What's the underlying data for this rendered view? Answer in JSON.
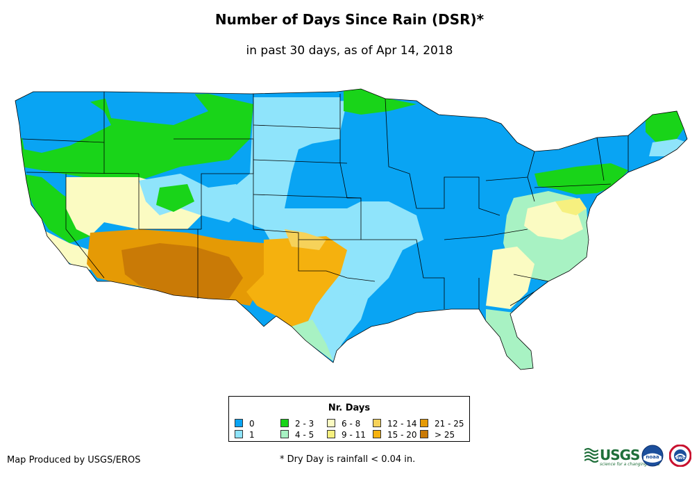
{
  "title": "Number of Days Since Rain (DSR)*",
  "subtitle": "in past 30 days, as of Apr 14, 2018",
  "legend": {
    "title": "Nr. Days",
    "items": [
      {
        "label": "0",
        "color": "#09a4f3"
      },
      {
        "label": "1",
        "color": "#8fe4fb"
      },
      {
        "label": "2 - 3",
        "color": "#19d419"
      },
      {
        "label": "4 - 5",
        "color": "#a8f2c3"
      },
      {
        "label": "6 - 8",
        "color": "#fbfbc2"
      },
      {
        "label": "9 - 11",
        "color": "#f6f07f"
      },
      {
        "label": "12 - 14",
        "color": "#f6d25a"
      },
      {
        "label": "15 - 20",
        "color": "#f5b10e"
      },
      {
        "label": "21 - 25",
        "color": "#e59a05"
      },
      {
        "label": "> 25",
        "color": "#c97a06"
      }
    ]
  },
  "footer": {
    "credit": "Map Produced by USGS/EROS",
    "note": "* Dry Day is rainfall < 0.04 in."
  },
  "logos": {
    "usgs": "USGS",
    "usgs_tagline": "science for a changing world",
    "noaa": "noaa",
    "nws": "NWS"
  },
  "regions": [
    {
      "name": "northwest-coast",
      "category": "0"
    },
    {
      "name": "northern-rockies",
      "category": "2 - 3"
    },
    {
      "name": "great-basin",
      "category": "6 - 8"
    },
    {
      "name": "southwest-desert",
      "category": "21 - 25"
    },
    {
      "name": "arizona-new-mexico",
      "category": "> 25"
    },
    {
      "name": "texas-plains",
      "category": "15 - 20"
    },
    {
      "name": "central-plains",
      "category": "1"
    },
    {
      "name": "midwest-southeast",
      "category": "0"
    },
    {
      "name": "mid-atlantic",
      "category": "4 - 5"
    },
    {
      "name": "northeast",
      "category": "2 - 3"
    },
    {
      "name": "florida",
      "category": "4 - 5"
    }
  ]
}
